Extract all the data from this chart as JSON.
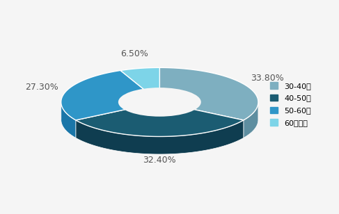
{
  "labels": [
    "30-40岁",
    "40-50岁",
    "50-60岁",
    "60岁以上"
  ],
  "values": [
    33.8,
    32.4,
    27.3,
    6.5
  ],
  "colors_top": [
    "#7eafc0",
    "#1b5c72",
    "#2f96c8",
    "#7dd4e8"
  ],
  "colors_side": [
    "#5e8ea0",
    "#0f3d50",
    "#1a76a8",
    "#5db4c8"
  ],
  "pct_labels": [
    "33.80%",
    "32.40%",
    "27.30%",
    "6.50%"
  ],
  "legend_labels": [
    "30-40岁",
    "40-50岁",
    "50-60岁",
    "60岁以上"
  ],
  "startangle": 90,
  "background_color": "#f5f5f5",
  "wedge_edge_color": "#ffffff",
  "label_color": "#555555",
  "label_fontsize": 9
}
